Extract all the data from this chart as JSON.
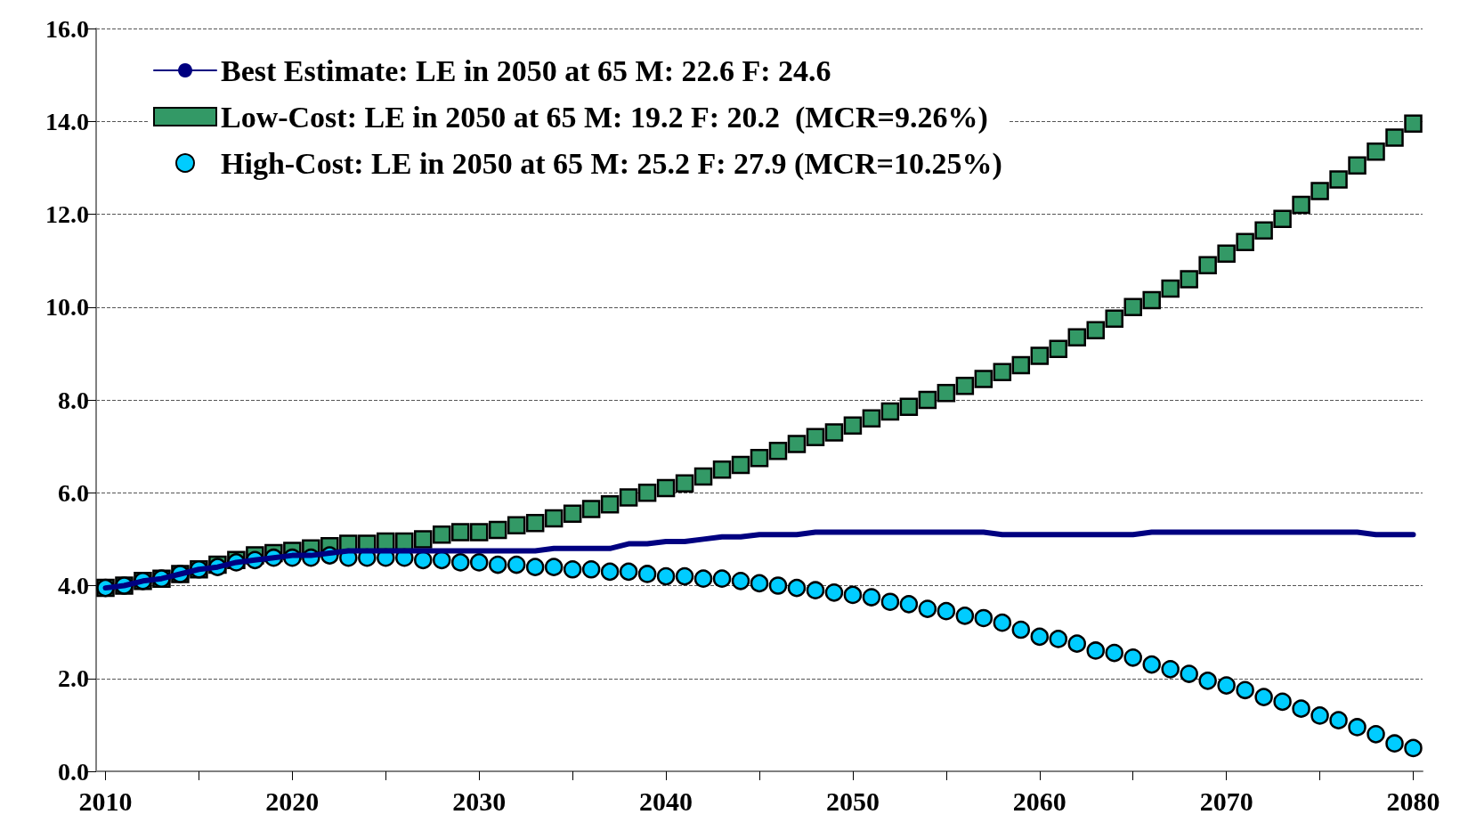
{
  "chart_data": {
    "type": "line",
    "x": [
      2010,
      2011,
      2012,
      2013,
      2014,
      2015,
      2016,
      2017,
      2018,
      2019,
      2020,
      2021,
      2022,
      2023,
      2024,
      2025,
      2026,
      2027,
      2028,
      2029,
      2030,
      2031,
      2032,
      2033,
      2034,
      2035,
      2036,
      2037,
      2038,
      2039,
      2040,
      2041,
      2042,
      2043,
      2044,
      2045,
      2046,
      2047,
      2048,
      2049,
      2050,
      2051,
      2052,
      2053,
      2054,
      2055,
      2056,
      2057,
      2058,
      2059,
      2060,
      2061,
      2062,
      2063,
      2064,
      2065,
      2066,
      2067,
      2068,
      2069,
      2070,
      2071,
      2072,
      2073,
      2074,
      2075,
      2076,
      2077,
      2078,
      2079,
      2080
    ],
    "series": [
      {
        "name": "Best Estimate: LE in 2050 at 65 M: 22.6 F: 24.6",
        "type": "line",
        "marker": "none",
        "color": "#000080",
        "values": [
          3.95,
          4.0,
          4.1,
          4.15,
          4.25,
          4.35,
          4.4,
          4.5,
          4.55,
          4.6,
          4.65,
          4.65,
          4.7,
          4.75,
          4.75,
          4.75,
          4.75,
          4.75,
          4.75,
          4.75,
          4.75,
          4.75,
          4.75,
          4.75,
          4.8,
          4.8,
          4.8,
          4.8,
          4.9,
          4.9,
          4.95,
          4.95,
          5.0,
          5.05,
          5.05,
          5.1,
          5.1,
          5.1,
          5.15,
          5.15,
          5.15,
          5.15,
          5.15,
          5.15,
          5.15,
          5.15,
          5.15,
          5.15,
          5.1,
          5.1,
          5.1,
          5.1,
          5.1,
          5.1,
          5.1,
          5.1,
          5.15,
          5.15,
          5.15,
          5.15,
          5.15,
          5.15,
          5.15,
          5.15,
          5.15,
          5.15,
          5.15,
          5.15,
          5.1,
          5.1,
          5.1
        ]
      },
      {
        "name": "Low-Cost: LE in 2050 at 65 M: 19.2 F: 20.2  (MCR=9.26%)",
        "type": "scatter",
        "marker": "square",
        "color": "#339966",
        "values": [
          3.95,
          4.0,
          4.1,
          4.15,
          4.25,
          4.35,
          4.45,
          4.55,
          4.65,
          4.7,
          4.75,
          4.8,
          4.85,
          4.9,
          4.9,
          4.95,
          4.95,
          5.0,
          5.1,
          5.15,
          5.15,
          5.2,
          5.3,
          5.35,
          5.45,
          5.55,
          5.65,
          5.75,
          5.9,
          6.0,
          6.1,
          6.2,
          6.35,
          6.5,
          6.6,
          6.75,
          6.9,
          7.05,
          7.2,
          7.3,
          7.45,
          7.6,
          7.75,
          7.85,
          8.0,
          8.15,
          8.3,
          8.45,
          8.6,
          8.75,
          8.95,
          9.1,
          9.35,
          9.5,
          9.75,
          10.0,
          10.15,
          10.4,
          10.6,
          10.9,
          11.15,
          11.4,
          11.65,
          11.9,
          12.2,
          12.5,
          12.75,
          13.05,
          13.35,
          13.65,
          13.95
        ]
      },
      {
        "name": "High-Cost: LE in 2050 at 65 M: 25.2 F: 27.9 (MCR=10.25%)",
        "type": "scatter",
        "marker": "circle",
        "color": "#00ccff",
        "values": [
          3.95,
          4.0,
          4.1,
          4.15,
          4.25,
          4.35,
          4.4,
          4.5,
          4.55,
          4.6,
          4.6,
          4.6,
          4.65,
          4.6,
          4.6,
          4.6,
          4.6,
          4.55,
          4.55,
          4.5,
          4.5,
          4.45,
          4.45,
          4.4,
          4.4,
          4.35,
          4.35,
          4.3,
          4.3,
          4.25,
          4.2,
          4.2,
          4.15,
          4.15,
          4.1,
          4.05,
          4.0,
          3.95,
          3.9,
          3.85,
          3.8,
          3.75,
          3.65,
          3.6,
          3.5,
          3.45,
          3.35,
          3.3,
          3.2,
          3.05,
          2.9,
          2.85,
          2.75,
          2.6,
          2.55,
          2.45,
          2.3,
          2.2,
          2.1,
          1.95,
          1.85,
          1.75,
          1.6,
          1.5,
          1.35,
          1.2,
          1.1,
          0.95,
          0.8,
          0.6,
          0.5
        ]
      }
    ],
    "xlim": [
      2009.5,
      2080.5
    ],
    "xticks": [
      2010,
      {
        "value": 2015,
        "label": null
      },
      2020,
      {
        "value": 2025,
        "label": null
      },
      2030,
      {
        "value": 2035,
        "label": null
      },
      2040,
      {
        "value": 2045,
        "label": null
      },
      2050,
      {
        "value": 2055,
        "label": null
      },
      2060,
      {
        "value": 2065,
        "label": null
      },
      2070,
      {
        "value": 2075,
        "label": null
      },
      2080
    ],
    "ylim": [
      0,
      16
    ],
    "yticks": [
      {
        "value": 0,
        "label": "0.0"
      },
      {
        "value": 2,
        "label": "2.0"
      },
      {
        "value": 4,
        "label": "4.0"
      },
      {
        "value": 6,
        "label": "6.0"
      },
      {
        "value": 8,
        "label": "8.0"
      },
      {
        "value": 10,
        "label": "10.0"
      },
      {
        "value": 12,
        "label": "12.0"
      },
      {
        "value": 14,
        "label": "14.0"
      },
      {
        "value": 16,
        "label": "16.0"
      }
    ],
    "grid": "y",
    "legend": "top left"
  }
}
